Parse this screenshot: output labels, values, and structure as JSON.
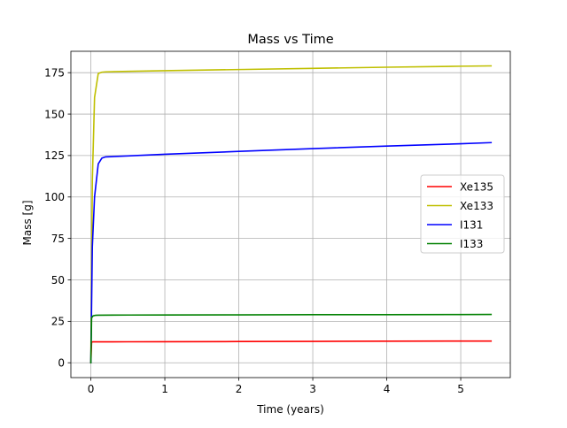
{
  "chart_data": {
    "type": "line",
    "title": "Mass vs Time",
    "xlabel": "Time (years)",
    "ylabel": "Mass [g]",
    "xlim": [
      -0.27,
      5.67
    ],
    "ylim": [
      -8.95,
      187.9
    ],
    "xticks": [
      0,
      1,
      2,
      3,
      4,
      5
    ],
    "yticks": [
      0,
      25,
      50,
      75,
      100,
      125,
      150,
      175
    ],
    "grid": true,
    "legend_position": "center-right",
    "series": [
      {
        "name": "Xe135",
        "color": "#ff0000",
        "x": [
          0,
          0.01,
          0.03,
          0.05,
          0.1,
          0.5,
          1,
          2,
          3,
          4,
          5,
          5.41
        ],
        "y": [
          0,
          12.5,
          12.6,
          12.6,
          12.6,
          12.65,
          12.7,
          12.8,
          12.9,
          13.0,
          13.1,
          13.1
        ]
      },
      {
        "name": "Xe133",
        "color": "#bfbf00",
        "x": [
          0,
          0.02,
          0.05,
          0.1,
          0.15,
          0.2,
          0.5,
          1,
          2,
          3,
          4,
          5,
          5.41
        ],
        "y": [
          0,
          110,
          160,
          174.5,
          175.3,
          175.5,
          175.8,
          176.2,
          176.9,
          177.6,
          178.3,
          178.9,
          179.1
        ]
      },
      {
        "name": "I131",
        "color": "#0000ff",
        "x": [
          0,
          0.02,
          0.05,
          0.1,
          0.15,
          0.2,
          0.5,
          1,
          2,
          3,
          4,
          5,
          5.41
        ],
        "y": [
          0,
          70,
          100,
          120,
          123.5,
          124.2,
          124.8,
          125.8,
          127.5,
          129.2,
          130.7,
          132.1,
          132.8
        ]
      },
      {
        "name": "I133",
        "color": "#008000",
        "x": [
          0,
          0.01,
          0.03,
          0.06,
          0.1,
          0.5,
          1,
          2,
          3,
          4,
          5,
          5.41
        ],
        "y": [
          0,
          27,
          28.3,
          28.6,
          28.7,
          28.8,
          28.85,
          28.9,
          29.0,
          29.05,
          29.1,
          29.15
        ]
      }
    ]
  }
}
